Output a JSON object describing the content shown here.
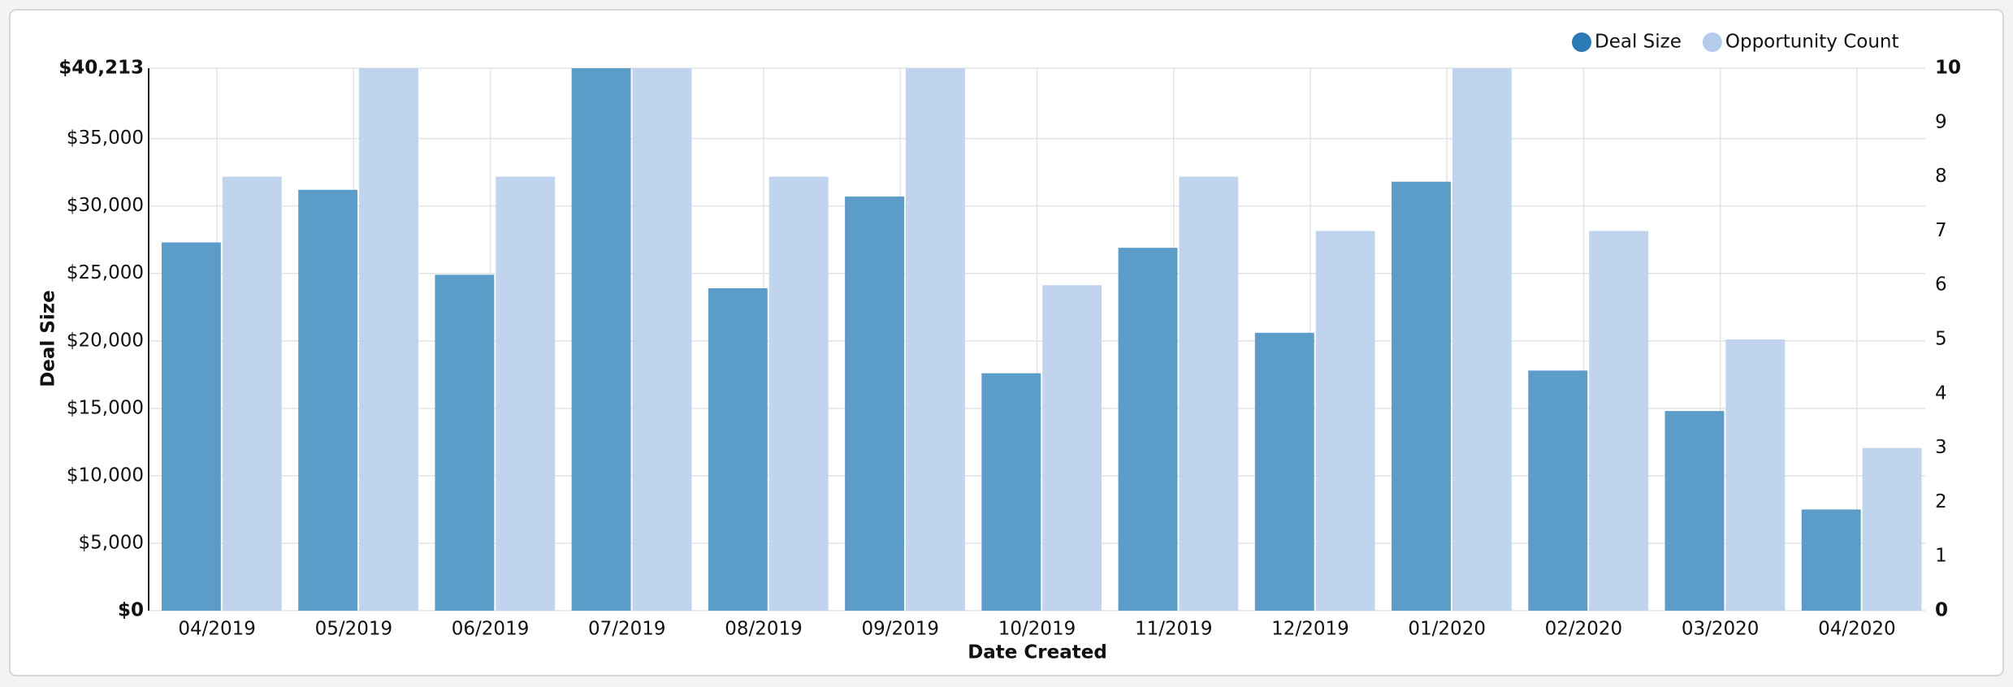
{
  "chart_data": {
    "type": "bar",
    "x_label": "Date Created",
    "y_label": "Deal Size",
    "categories": [
      "04/2019",
      "05/2019",
      "06/2019",
      "07/2019",
      "08/2019",
      "09/2019",
      "10/2019",
      "11/2019",
      "12/2019",
      "01/2020",
      "02/2020",
      "03/2020",
      "04/2020"
    ],
    "series": [
      {
        "name": "Deal Size",
        "color": "#5b9cc9",
        "legend_color": "#2a7ab8",
        "values": [
          27300,
          31200,
          24900,
          40213,
          23900,
          30700,
          17600,
          26900,
          20600,
          31800,
          17800,
          14800,
          7500
        ]
      },
      {
        "name": "Opportunity Count",
        "color": "#c0d4ee",
        "legend_color": "#b4cbec",
        "axis": "y2",
        "values": [
          8,
          10,
          8,
          10,
          8,
          10,
          6,
          8,
          7,
          10,
          7,
          5,
          3
        ]
      }
    ],
    "ylim": [
      0,
      40213
    ],
    "yticks": [
      {
        "value": 0,
        "label": "$0"
      },
      {
        "value": 5000,
        "label": "$5,000"
      },
      {
        "value": 10000,
        "label": "$10,000"
      },
      {
        "value": 15000,
        "label": "$15,000"
      },
      {
        "value": 20000,
        "label": "$20,000"
      },
      {
        "value": 25000,
        "label": "$25,000"
      },
      {
        "value": 30000,
        "label": "$30,000"
      },
      {
        "value": 35000,
        "label": "$35,000"
      },
      {
        "value": 40213,
        "label": "$40,213"
      }
    ],
    "y2lim": [
      0,
      10
    ],
    "y2ticks": [
      0,
      1,
      2,
      3,
      4,
      5,
      6,
      7,
      8,
      9,
      10
    ],
    "grid": true,
    "legend": "top-right"
  }
}
